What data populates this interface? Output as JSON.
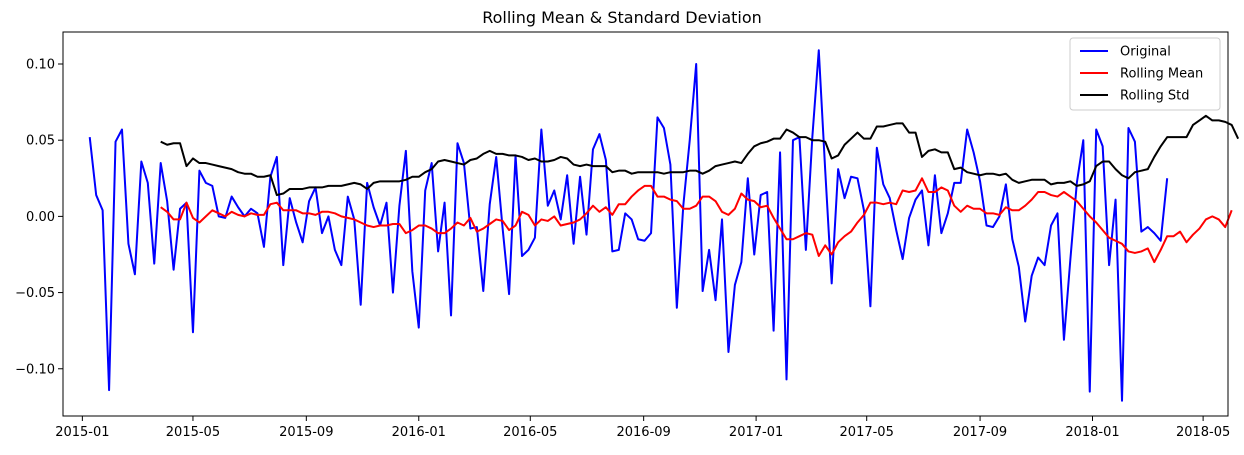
{
  "chart_data": {
    "type": "line",
    "title": "Rolling Mean & Standard Deviation",
    "xlabel": "",
    "ylabel": "",
    "x_axis_type": "date",
    "xlim": [
      "2014-12-11",
      "2018-05-28"
    ],
    "ylim": [
      -0.131,
      0.121
    ],
    "x_ticks": [
      "2015-01-01",
      "2015-05-01",
      "2015-09-01",
      "2016-01-01",
      "2016-05-01",
      "2016-09-01",
      "2017-01-01",
      "2017-05-01",
      "2017-09-01",
      "2018-01-01",
      "2018-05-01"
    ],
    "x_tick_labels": [
      "2015-01",
      "2015-05",
      "2015-09",
      "2016-01",
      "2016-05",
      "2016-09",
      "2017-01",
      "2017-05",
      "2017-09",
      "2018-01",
      "2018-05"
    ],
    "y_ticks": [
      -0.1,
      -0.05,
      0.0,
      0.05,
      0.1
    ],
    "y_tick_labels": [
      "−0.10",
      "−0.05",
      "0.00",
      "0.05",
      "0.10"
    ],
    "grid": false,
    "legend_position": "top-right",
    "x_start": "2015-01-09",
    "x_step_days": 7,
    "series": [
      {
        "name": "Original",
        "color": "#0000ff",
        "values": [
          0.052,
          0.014,
          0.004,
          -0.114,
          0.049,
          0.057,
          -0.018,
          -0.038,
          0.036,
          0.022,
          -0.031,
          0.035,
          0.01,
          -0.035,
          0.005,
          0.009,
          -0.076,
          0.03,
          0.022,
          0.02,
          0.0,
          -0.001,
          0.013,
          0.006,
          0.0,
          0.005,
          0.002,
          -0.02,
          0.026,
          0.039,
          -0.032,
          0.012,
          -0.004,
          -0.017,
          0.01,
          0.019,
          -0.011,
          0.0,
          -0.022,
          -0.032,
          0.013,
          -0.002,
          -0.058,
          0.022,
          0.006,
          -0.006,
          0.009,
          -0.05,
          0.007,
          0.043,
          -0.036,
          -0.073,
          0.017,
          0.035,
          -0.023,
          0.009,
          -0.065,
          0.048,
          0.035,
          -0.008,
          -0.007,
          -0.049,
          0.008,
          0.039,
          -0.008,
          -0.051,
          0.04,
          -0.026,
          -0.022,
          -0.014,
          0.057,
          0.007,
          0.017,
          -0.002,
          0.027,
          -0.018,
          0.026,
          -0.012,
          0.044,
          0.054,
          0.037,
          -0.023,
          -0.022,
          0.002,
          -0.002,
          -0.015,
          -0.016,
          -0.011,
          0.065,
          0.058,
          0.034,
          -0.06,
          0.007,
          0.05,
          0.1,
          -0.049,
          -0.022,
          -0.055,
          -0.002,
          -0.089,
          -0.045,
          -0.03,
          0.025,
          -0.025,
          0.014,
          0.016,
          -0.075,
          0.042,
          -0.107,
          0.05,
          0.052,
          -0.022,
          0.052,
          0.109,
          0.03,
          -0.044,
          0.031,
          0.012,
          0.026,
          0.025,
          0.004,
          -0.059,
          0.045,
          0.021,
          0.012,
          -0.009,
          -0.028,
          -0.001,
          0.011,
          0.017,
          -0.019,
          0.027,
          -0.011,
          0.002,
          0.022,
          0.022,
          0.057,
          0.042,
          0.023,
          -0.006,
          -0.007,
          0.0,
          0.021,
          -0.015,
          -0.033,
          -0.069,
          -0.039,
          -0.027,
          -0.032,
          -0.006,
          0.002,
          -0.081,
          -0.028,
          0.022,
          0.05,
          -0.115,
          0.057,
          0.046,
          -0.032,
          0.011,
          -0.121,
          0.058,
          0.049,
          -0.01,
          -0.007,
          -0.011,
          -0.016,
          0.025
        ]
      },
      {
        "name": "Rolling Mean",
        "color": "#ff0000",
        "start_index": 11,
        "values": [
          0.006,
          0.003,
          -0.002,
          -0.002,
          0.009,
          -0.001,
          -0.004,
          0.0,
          0.004,
          0.002,
          0.0,
          0.003,
          0.001,
          0.0,
          0.002,
          0.001,
          0.001,
          0.008,
          0.009,
          0.004,
          0.004,
          0.004,
          0.002,
          0.002,
          0.001,
          0.003,
          0.003,
          0.002,
          0.0,
          -0.001,
          -0.002,
          -0.004,
          -0.006,
          -0.007,
          -0.006,
          -0.006,
          -0.005,
          -0.005,
          -0.011,
          -0.009,
          -0.006,
          -0.006,
          -0.008,
          -0.011,
          -0.011,
          -0.008,
          -0.004,
          -0.006,
          -0.001,
          -0.01,
          -0.008,
          -0.005,
          -0.002,
          -0.003,
          -0.009,
          -0.006,
          0.003,
          0.001,
          -0.006,
          -0.002,
          -0.003,
          0.0,
          -0.006,
          -0.005,
          -0.004,
          -0.002,
          0.002,
          0.007,
          0.003,
          0.006,
          0.001,
          0.008,
          0.008,
          0.013,
          0.017,
          0.02,
          0.02,
          0.013,
          0.013,
          0.011,
          0.01,
          0.005,
          0.005,
          0.007,
          0.013,
          0.013,
          0.01,
          0.003,
          0.001,
          0.005,
          0.015,
          0.011,
          0.01,
          0.006,
          0.007,
          -0.001,
          -0.008,
          -0.015,
          -0.015,
          -0.013,
          -0.011,
          -0.012,
          -0.026,
          -0.019,
          -0.025,
          -0.017,
          -0.013,
          -0.01,
          -0.004,
          0.001,
          0.009,
          0.009,
          0.008,
          0.009,
          0.008,
          0.017,
          0.016,
          0.017,
          0.025,
          0.016,
          0.016,
          0.019,
          0.017,
          0.007,
          0.003,
          0.007,
          0.005,
          0.005,
          0.002,
          0.002,
          0.001,
          0.006,
          0.004,
          0.004,
          0.007,
          0.011,
          0.016,
          0.016,
          0.014,
          0.013,
          0.016,
          0.013,
          0.01,
          0.005,
          0.0,
          -0.004,
          -0.009,
          -0.014,
          -0.016,
          -0.018,
          -0.023,
          -0.024,
          -0.023,
          -0.021,
          -0.03,
          -0.022,
          -0.013,
          -0.013,
          -0.01,
          -0.017,
          -0.012,
          -0.008,
          -0.002,
          0.0,
          -0.002,
          -0.007,
          0.004
        ]
      },
      {
        "name": "Rolling Std",
        "color": "#000000",
        "start_index": 11,
        "values": [
          0.049,
          0.047,
          0.048,
          0.048,
          0.033,
          0.038,
          0.035,
          0.035,
          0.034,
          0.033,
          0.032,
          0.031,
          0.029,
          0.028,
          0.028,
          0.026,
          0.026,
          0.027,
          0.014,
          0.015,
          0.018,
          0.018,
          0.018,
          0.019,
          0.019,
          0.019,
          0.02,
          0.02,
          0.02,
          0.021,
          0.022,
          0.021,
          0.018,
          0.022,
          0.023,
          0.023,
          0.023,
          0.023,
          0.024,
          0.026,
          0.026,
          0.029,
          0.031,
          0.036,
          0.037,
          0.036,
          0.035,
          0.034,
          0.037,
          0.038,
          0.041,
          0.043,
          0.041,
          0.041,
          0.04,
          0.04,
          0.039,
          0.037,
          0.038,
          0.036,
          0.036,
          0.037,
          0.039,
          0.038,
          0.034,
          0.033,
          0.034,
          0.033,
          0.033,
          0.033,
          0.029,
          0.03,
          0.03,
          0.028,
          0.029,
          0.029,
          0.029,
          0.029,
          0.028,
          0.029,
          0.029,
          0.029,
          0.03,
          0.03,
          0.028,
          0.03,
          0.033,
          0.034,
          0.035,
          0.036,
          0.035,
          0.041,
          0.046,
          0.048,
          0.049,
          0.051,
          0.051,
          0.057,
          0.055,
          0.052,
          0.052,
          0.05,
          0.05,
          0.049,
          0.038,
          0.04,
          0.047,
          0.051,
          0.055,
          0.051,
          0.051,
          0.059,
          0.059,
          0.06,
          0.061,
          0.061,
          0.055,
          0.055,
          0.039,
          0.043,
          0.044,
          0.042,
          0.042,
          0.031,
          0.032,
          0.029,
          0.028,
          0.027,
          0.028,
          0.028,
          0.027,
          0.028,
          0.024,
          0.022,
          0.023,
          0.024,
          0.024,
          0.024,
          0.021,
          0.022,
          0.022,
          0.023,
          0.02,
          0.021,
          0.023,
          0.033,
          0.036,
          0.036,
          0.031,
          0.027,
          0.025,
          0.029,
          0.03,
          0.031,
          0.039,
          0.046,
          0.052,
          0.052,
          0.052,
          0.052,
          0.06,
          0.063,
          0.066,
          0.063,
          0.063,
          0.062,
          0.06,
          0.051
        ]
      }
    ]
  }
}
